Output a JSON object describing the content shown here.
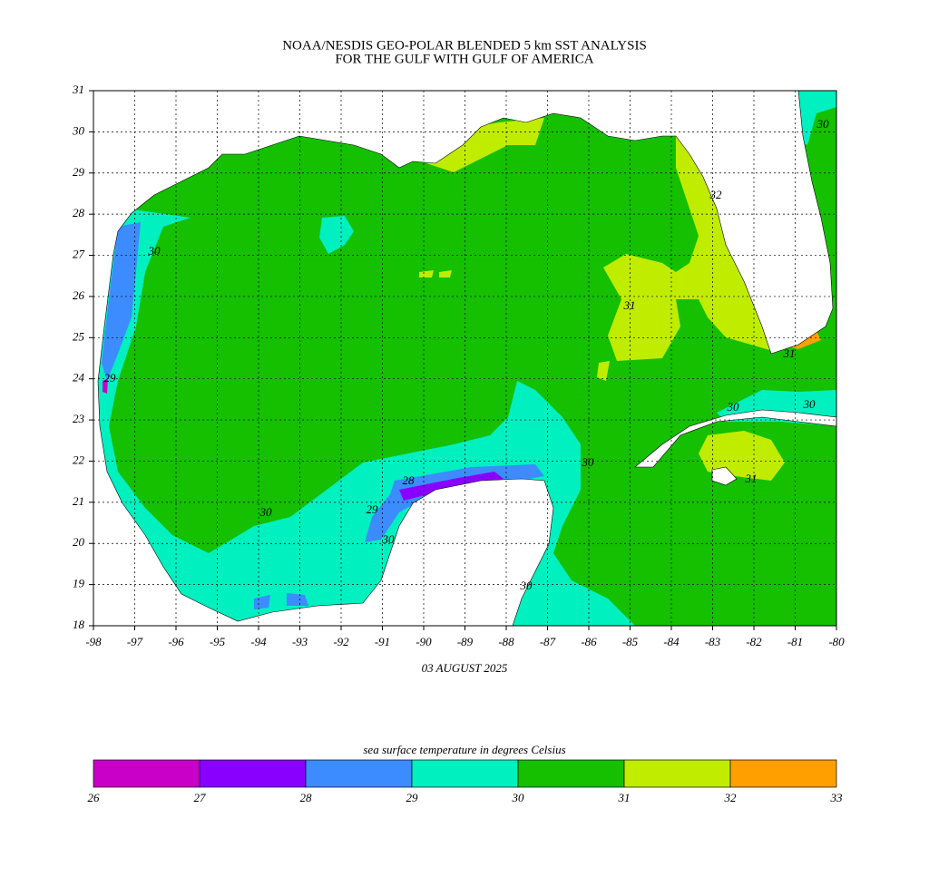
{
  "title": [
    "NOAA/NESDIS GEO-POLAR BLENDED 5 km SST ANALYSIS",
    "FOR THE GULF WITH GULF OF AMERICA"
  ],
  "date": "03 AUGUST 2025",
  "map": {
    "xlim": [
      -98,
      -80
    ],
    "ylim": [
      18,
      31
    ],
    "xticks": [
      -98,
      -97,
      -96,
      -95,
      -94,
      -93,
      -92,
      -91,
      -90,
      -89,
      -88,
      -87,
      -86,
      -85,
      -84,
      -83,
      -82,
      -81,
      -80
    ],
    "yticks": [
      18,
      19,
      20,
      21,
      22,
      23,
      24,
      25,
      26,
      27,
      28,
      29,
      30,
      31
    ],
    "grid": true,
    "contour_labels": [
      30,
      29,
      30,
      29,
      28,
      30,
      30,
      30,
      30,
      30,
      31,
      31,
      32,
      31,
      30
    ]
  },
  "colorbar": {
    "label": "sea surface temperature in degrees Celsius",
    "bounds": [
      26,
      27,
      28,
      29,
      30,
      31,
      32,
      33
    ],
    "colors": [
      "#c800c8",
      "#8a00ff",
      "#3c8cff",
      "#00f0c0",
      "#14c000",
      "#c0ec00",
      "#ffa000"
    ]
  }
}
